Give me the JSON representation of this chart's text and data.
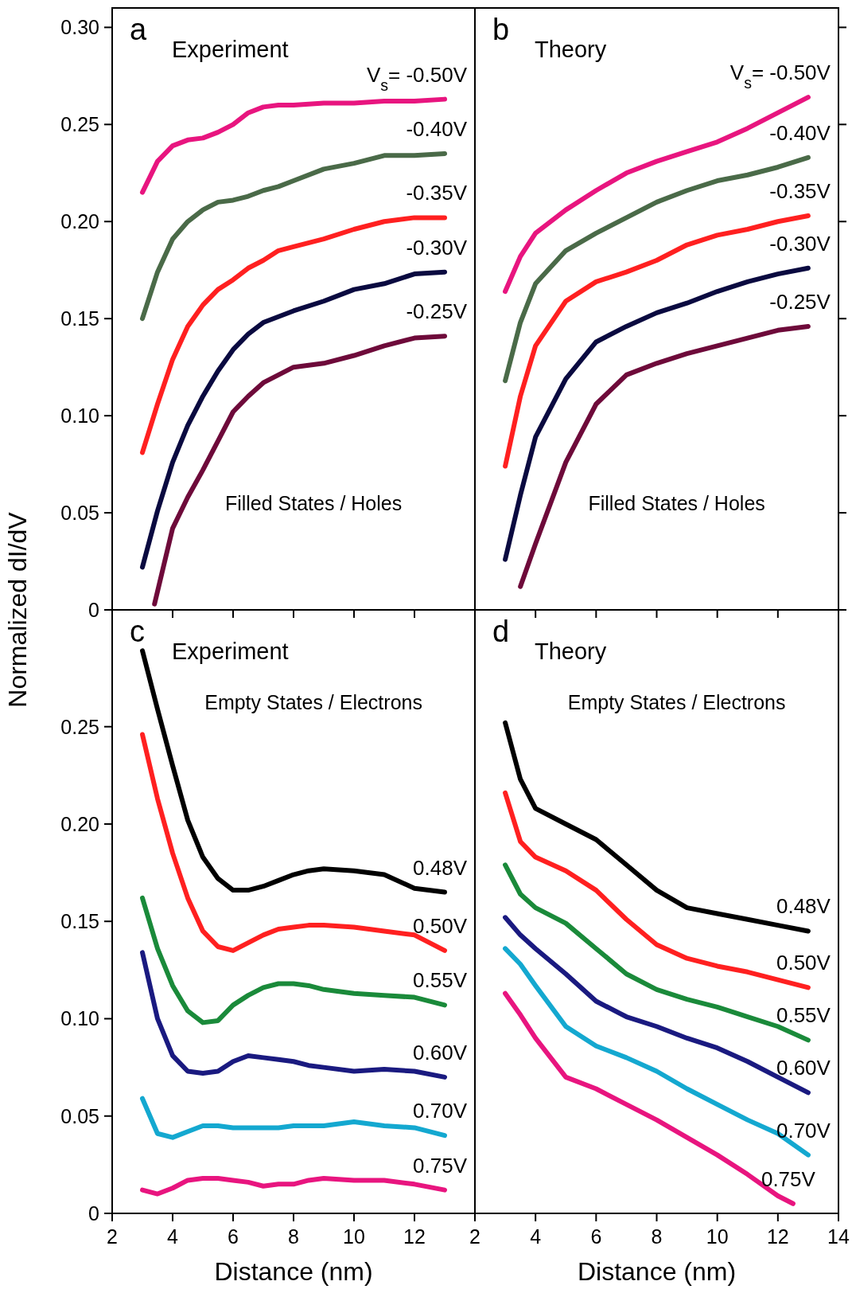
{
  "chart_data": [
    {
      "type": "line",
      "title": "a",
      "subtitle": "Experiment",
      "annotations": [
        "Filled States / Holes"
      ],
      "xlim": [
        2,
        14
      ],
      "xticks": [
        2,
        4,
        6,
        8,
        10,
        12
      ],
      "ylim": [
        0,
        0.31
      ],
      "yticks": [
        0,
        0.05,
        {
          "value": 0.1,
          "label": "0.10"
        },
        0.15,
        {
          "value": 0.2,
          "label": "0.20"
        },
        0.25,
        {
          "value": 0.3,
          "label": "0.30"
        }
      ],
      "tick_labels": "y",
      "x": [
        3,
        3.5,
        4,
        4.5,
        5,
        5.5,
        6,
        6.5,
        7,
        7.5,
        8,
        9,
        10,
        11,
        12,
        13
      ],
      "series": [
        {
          "name": "V$_{s}$= -0.50V",
          "color": "#e8157f",
          "values": [
            0.215,
            0.231,
            0.239,
            0.242,
            0.243,
            0.246,
            0.25,
            0.256,
            0.259,
            0.26,
            0.26,
            0.261,
            0.261,
            0.262,
            0.262,
            0.263
          ]
        },
        {
          "name": "-0.40V",
          "color": "#4a6a48",
          "values": [
            0.15,
            0.174,
            0.191,
            0.2,
            0.206,
            0.21,
            0.211,
            0.213,
            0.216,
            0.218,
            0.221,
            0.227,
            0.23,
            0.234,
            0.234,
            0.235
          ]
        },
        {
          "name": "-0.35V",
          "color": "#ff2020",
          "values": [
            0.081,
            0.106,
            0.129,
            0.146,
            0.157,
            0.165,
            0.17,
            0.176,
            0.18,
            0.185,
            0.187,
            0.191,
            0.196,
            0.2,
            0.202,
            0.202
          ]
        },
        {
          "name": "-0.30V",
          "color": "#0a0a40",
          "values": [
            0.022,
            0.051,
            0.076,
            0.095,
            0.11,
            0.123,
            0.134,
            0.142,
            0.148,
            0.151,
            0.154,
            0.159,
            0.165,
            0.168,
            0.173,
            0.174
          ]
        },
        {
          "name": "-0.25V",
          "color": "#6e0a3a",
          "x": [
            3.4,
            4,
            4.5,
            5,
            5.5,
            6,
            6.5,
            7,
            7.5,
            8,
            9,
            10,
            11,
            12,
            13
          ],
          "values": [
            0.003,
            0.042,
            0.058,
            0.072,
            0.087,
            0.102,
            0.11,
            0.117,
            0.121,
            0.125,
            0.127,
            0.131,
            0.136,
            0.14,
            0.141
          ]
        }
      ]
    },
    {
      "type": "line",
      "title": "b",
      "subtitle": "Theory",
      "annotations": [
        "Filled States / Holes"
      ],
      "xlim": [
        2,
        14
      ],
      "xticks": [
        2,
        4,
        6,
        8,
        10,
        12,
        14
      ],
      "ylim": [
        0,
        0.31
      ],
      "yticks": [
        0,
        0.05,
        0.1,
        0.15,
        0.2,
        0.25,
        0.3
      ],
      "tick_labels": false,
      "x": [
        3,
        3.5,
        4,
        5,
        6,
        7,
        8,
        9,
        10,
        11,
        12,
        13
      ],
      "series": [
        {
          "name": "V$_{s}$= -0.50V",
          "color": "#e8157f",
          "values": [
            0.164,
            0.182,
            0.194,
            0.206,
            0.216,
            0.225,
            0.231,
            0.236,
            0.241,
            0.248,
            0.256,
            0.264
          ]
        },
        {
          "name": "-0.40V",
          "color": "#4a6a48",
          "values": [
            0.118,
            0.148,
            0.168,
            0.185,
            0.194,
            0.202,
            0.21,
            0.216,
            0.221,
            0.224,
            0.228,
            0.233
          ]
        },
        {
          "name": "-0.35V",
          "color": "#ff2020",
          "values": [
            0.074,
            0.11,
            0.136,
            0.159,
            0.169,
            0.174,
            0.18,
            0.188,
            0.193,
            0.196,
            0.2,
            0.203
          ]
        },
        {
          "name": "-0.30V",
          "color": "#0a0a40",
          "values": [
            0.026,
            0.059,
            0.089,
            0.119,
            0.138,
            0.146,
            0.153,
            0.158,
            0.164,
            0.169,
            0.173,
            0.176
          ]
        },
        {
          "name": "-0.25V",
          "color": "#6e0a3a",
          "x": [
            3.5,
            4,
            5,
            6,
            7,
            8,
            9,
            10,
            11,
            12,
            13
          ],
          "values": [
            0.012,
            0.034,
            0.076,
            0.106,
            0.121,
            0.127,
            0.132,
            0.136,
            0.14,
            0.144,
            0.146
          ]
        }
      ]
    },
    {
      "type": "line",
      "title": "c",
      "subtitle": "Experiment",
      "annotations": [
        "Empty States / Electrons"
      ],
      "xlabel": "Distance (nm)",
      "ylabel": "Normalized dI/dV",
      "xlim": [
        2,
        14
      ],
      "xticks": [
        2,
        4,
        6,
        8,
        10,
        12
      ],
      "ylim": [
        0,
        0.31
      ],
      "yticks": [
        0,
        0.05,
        {
          "value": 0.1,
          "label": "0.10"
        },
        0.15,
        {
          "value": 0.2,
          "label": "0.20"
        },
        0.25
      ],
      "x": [
        3,
        3.5,
        4,
        4.5,
        5,
        5.5,
        6,
        6.5,
        7,
        7.5,
        8,
        8.5,
        9,
        10,
        11,
        12,
        13
      ],
      "series": [
        {
          "name": "0.48V",
          "color": "#000000",
          "values": [
            0.289,
            0.259,
            0.23,
            0.202,
            0.183,
            0.172,
            0.166,
            0.166,
            0.168,
            0.171,
            0.174,
            0.176,
            0.177,
            0.176,
            0.174,
            0.167,
            0.165
          ]
        },
        {
          "name": "0.50V",
          "color": "#ff2020",
          "values": [
            0.246,
            0.213,
            0.185,
            0.162,
            0.145,
            0.137,
            0.135,
            0.139,
            0.143,
            0.146,
            0.147,
            0.148,
            0.148,
            0.147,
            0.145,
            0.143,
            0.135
          ]
        },
        {
          "name": "0.55V",
          "color": "#1a8a3a",
          "values": [
            0.162,
            0.136,
            0.117,
            0.104,
            0.098,
            0.099,
            0.107,
            0.112,
            0.116,
            0.118,
            0.118,
            0.117,
            0.115,
            0.113,
            0.112,
            0.111,
            0.107
          ]
        },
        {
          "name": "0.60V",
          "color": "#1a1a80",
          "values": [
            0.134,
            0.1,
            0.081,
            0.073,
            0.072,
            0.073,
            0.078,
            0.081,
            0.08,
            0.079,
            0.078,
            0.076,
            0.075,
            0.073,
            0.074,
            0.073,
            0.07
          ]
        },
        {
          "name": "0.70V",
          "color": "#14a8d0",
          "values": [
            0.059,
            0.041,
            0.039,
            0.042,
            0.045,
            0.045,
            0.044,
            0.044,
            0.044,
            0.044,
            0.045,
            0.045,
            0.045,
            0.047,
            0.045,
            0.044,
            0.04
          ]
        },
        {
          "name": "0.75V",
          "color": "#e8157f",
          "values": [
            0.012,
            0.01,
            0.013,
            0.017,
            0.018,
            0.018,
            0.017,
            0.016,
            0.014,
            0.015,
            0.015,
            0.017,
            0.018,
            0.017,
            0.017,
            0.015,
            0.012
          ]
        }
      ]
    },
    {
      "type": "line",
      "title": "d",
      "subtitle": "Theory",
      "annotations": [
        "Empty States / Electrons"
      ],
      "xlabel": "Distance (nm)",
      "xlim": [
        2,
        14
      ],
      "xticks": [
        2,
        4,
        6,
        8,
        10,
        12,
        14
      ],
      "ylim": [
        0,
        0.31
      ],
      "yticks": [
        0,
        0.05,
        0.1,
        0.15,
        0.2,
        0.25
      ],
      "tick_labels": "x",
      "x": [
        3,
        3.5,
        4,
        5,
        6,
        7,
        8,
        9,
        10,
        11,
        12,
        13
      ],
      "series": [
        {
          "name": "0.48V",
          "color": "#000000",
          "values": [
            0.252,
            0.223,
            0.208,
            0.2,
            0.192,
            0.179,
            0.166,
            0.157,
            0.154,
            0.151,
            0.148,
            0.145
          ]
        },
        {
          "name": "0.50V",
          "color": "#ff2020",
          "values": [
            0.216,
            0.191,
            0.183,
            0.176,
            0.166,
            0.151,
            0.138,
            0.131,
            0.127,
            0.124,
            0.12,
            0.116
          ]
        },
        {
          "name": "0.55V",
          "color": "#1a8a3a",
          "values": [
            0.179,
            0.164,
            0.157,
            0.149,
            0.136,
            0.123,
            0.115,
            0.11,
            0.106,
            0.101,
            0.096,
            0.089
          ]
        },
        {
          "name": "0.60V",
          "color": "#1a1a80",
          "values": [
            0.152,
            0.143,
            0.136,
            0.123,
            0.109,
            0.101,
            0.096,
            0.09,
            0.085,
            0.078,
            0.07,
            0.062
          ]
        },
        {
          "name": "0.70V",
          "color": "#14a8d0",
          "values": [
            0.136,
            0.128,
            0.117,
            0.096,
            0.086,
            0.08,
            0.073,
            0.064,
            0.056,
            0.048,
            0.041,
            0.03
          ]
        },
        {
          "name": "0.75V",
          "color": "#e8157f",
          "x": [
            3,
            3.5,
            4,
            5,
            6,
            7,
            8,
            9,
            10,
            11,
            12,
            12.5
          ],
          "values": [
            0.113,
            0.102,
            0.09,
            0.07,
            0.064,
            0.056,
            0.048,
            0.039,
            0.03,
            0.02,
            0.009,
            0.005
          ]
        }
      ]
    }
  ]
}
